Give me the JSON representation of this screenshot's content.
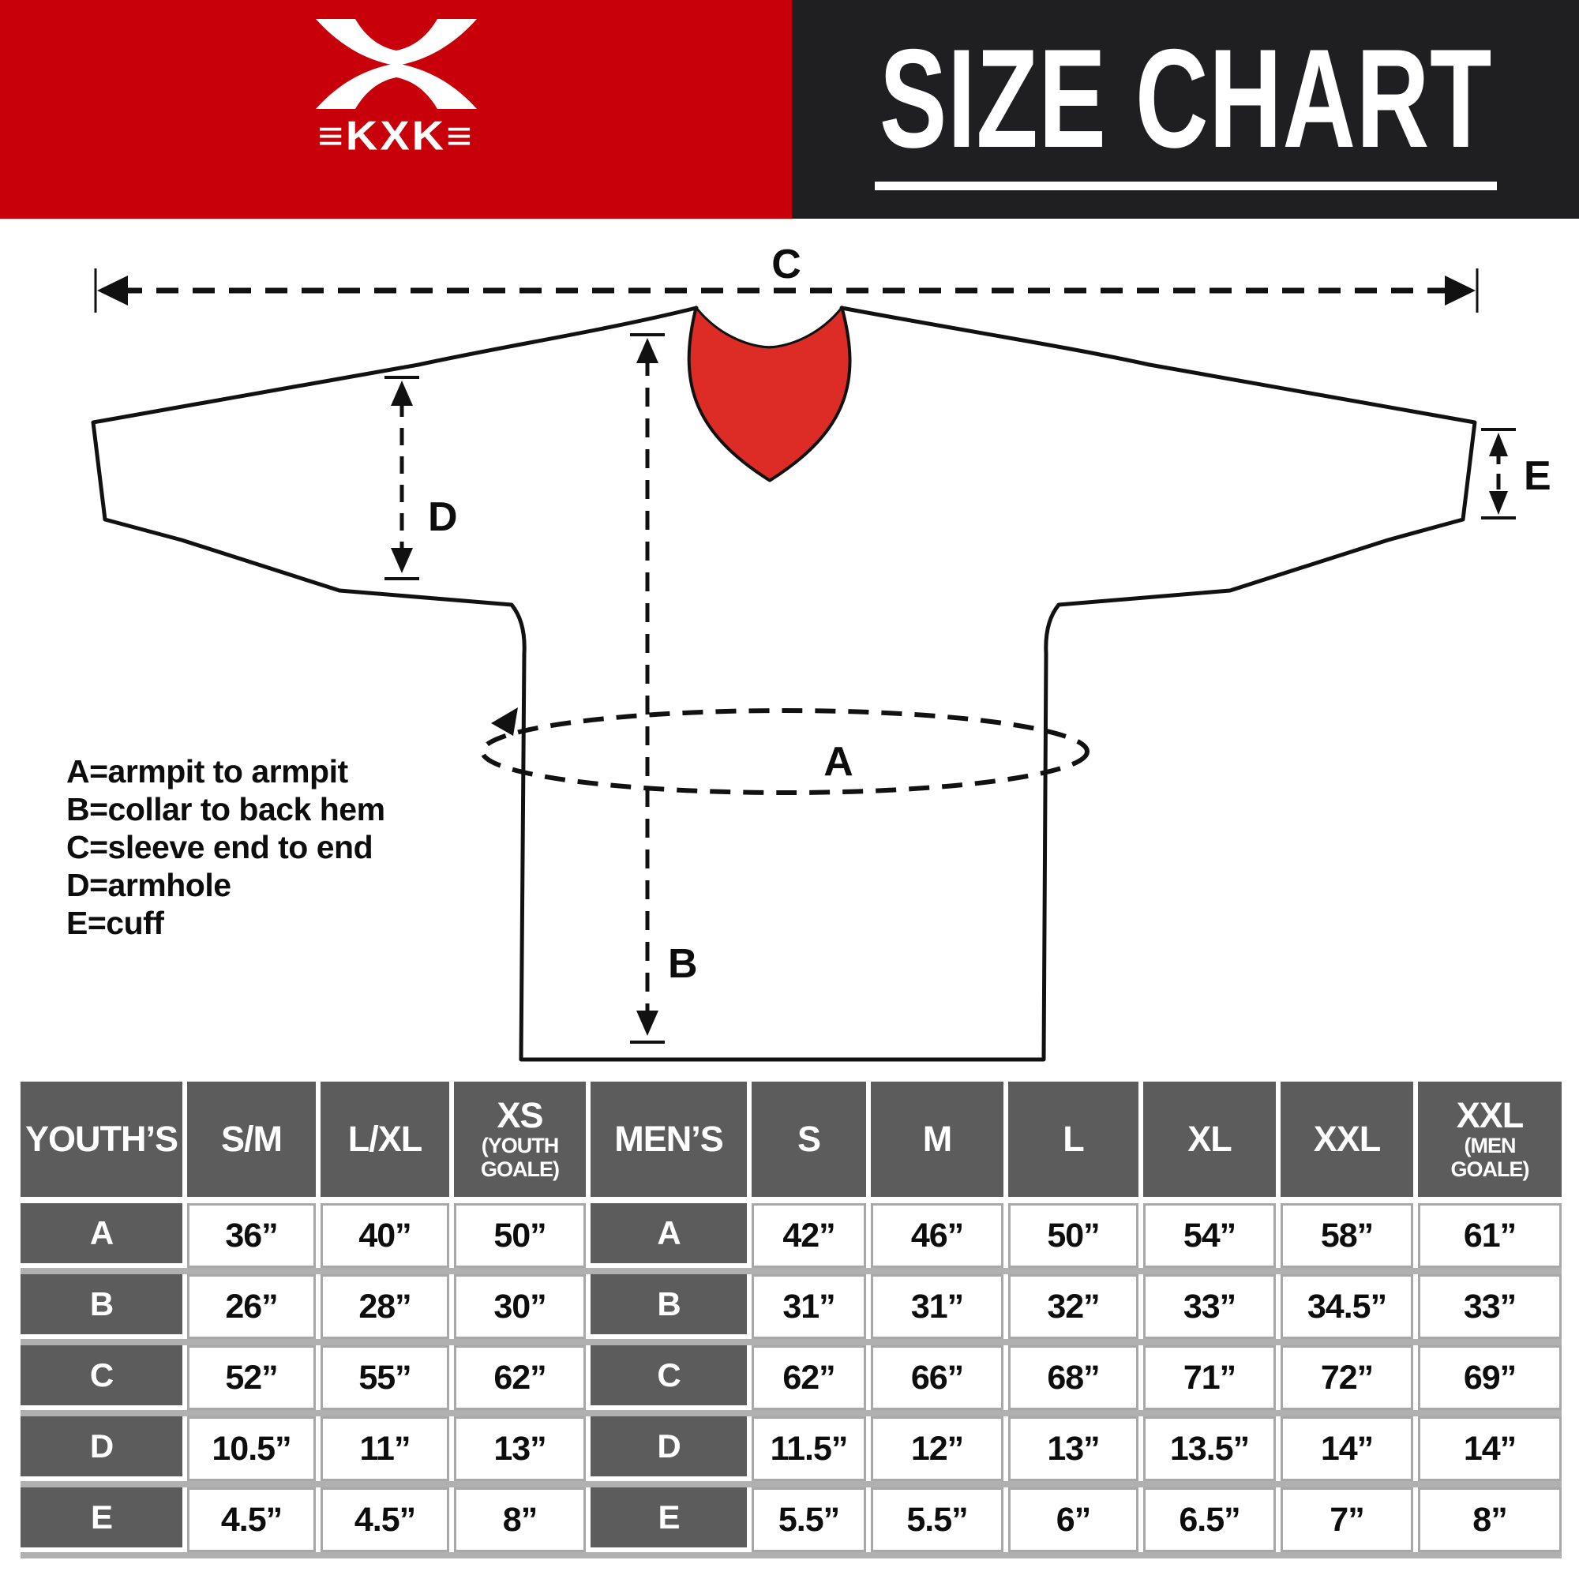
{
  "brand": {
    "name": "≡KXK≡"
  },
  "title": {
    "text": "SIZE CHART"
  },
  "colors": {
    "header_red": "#c70009",
    "header_black": "#1f1f21",
    "table_header_gray": "#5c5c5c",
    "separator_gray": "#b0b0b0",
    "cell_border_gray": "#a8a8a8",
    "collar_red": "#dd2c26",
    "collar_gray": "#c4c4c4",
    "collar_blue": "#1c80c4"
  },
  "diagram": {
    "labels": {
      "a": "A",
      "b": "B",
      "c": "C",
      "d": "D",
      "e": "E"
    },
    "legend": [
      "A=armpit to armpit",
      "B=collar to back hem",
      "C=sleeve end to end",
      "D=armhole",
      "E=cuff"
    ]
  },
  "table": {
    "header": [
      {
        "label": "YOUTH’S",
        "sub": ""
      },
      {
        "label": "S/M",
        "sub": ""
      },
      {
        "label": "L/XL",
        "sub": ""
      },
      {
        "label": "XS",
        "sub": "(YOUTH GOALE)"
      },
      {
        "label": "MEN’S",
        "sub": ""
      },
      {
        "label": "S",
        "sub": ""
      },
      {
        "label": "M",
        "sub": ""
      },
      {
        "label": "L",
        "sub": ""
      },
      {
        "label": "XL",
        "sub": ""
      },
      {
        "label": "XXL",
        "sub": ""
      },
      {
        "label": "XXL",
        "sub": "(MEN GOALE)"
      }
    ],
    "rows": [
      {
        "label": "A",
        "youth": [
          "36”",
          "40”",
          "50”"
        ],
        "men": [
          "42”",
          "46”",
          "50”",
          "54”",
          "58”",
          "61”"
        ]
      },
      {
        "label": "B",
        "youth": [
          "26”",
          "28”",
          "30”"
        ],
        "men": [
          "31”",
          "31”",
          "32”",
          "33”",
          "34.5”",
          "33”"
        ]
      },
      {
        "label": "C",
        "youth": [
          "52”",
          "55”",
          "62”"
        ],
        "men": [
          "62”",
          "66”",
          "68”",
          "71”",
          "72”",
          "69”"
        ]
      },
      {
        "label": "D",
        "youth": [
          "10.5”",
          "11”",
          "13”"
        ],
        "men": [
          "11.5”",
          "12”",
          "13”",
          "13.5”",
          "14”",
          "14”"
        ]
      },
      {
        "label": "E",
        "youth": [
          "4.5”",
          "4.5”",
          "8”"
        ],
        "men": [
          "5.5”",
          "5.5”",
          "6”",
          "6.5”",
          "7”",
          "8”"
        ]
      }
    ]
  }
}
